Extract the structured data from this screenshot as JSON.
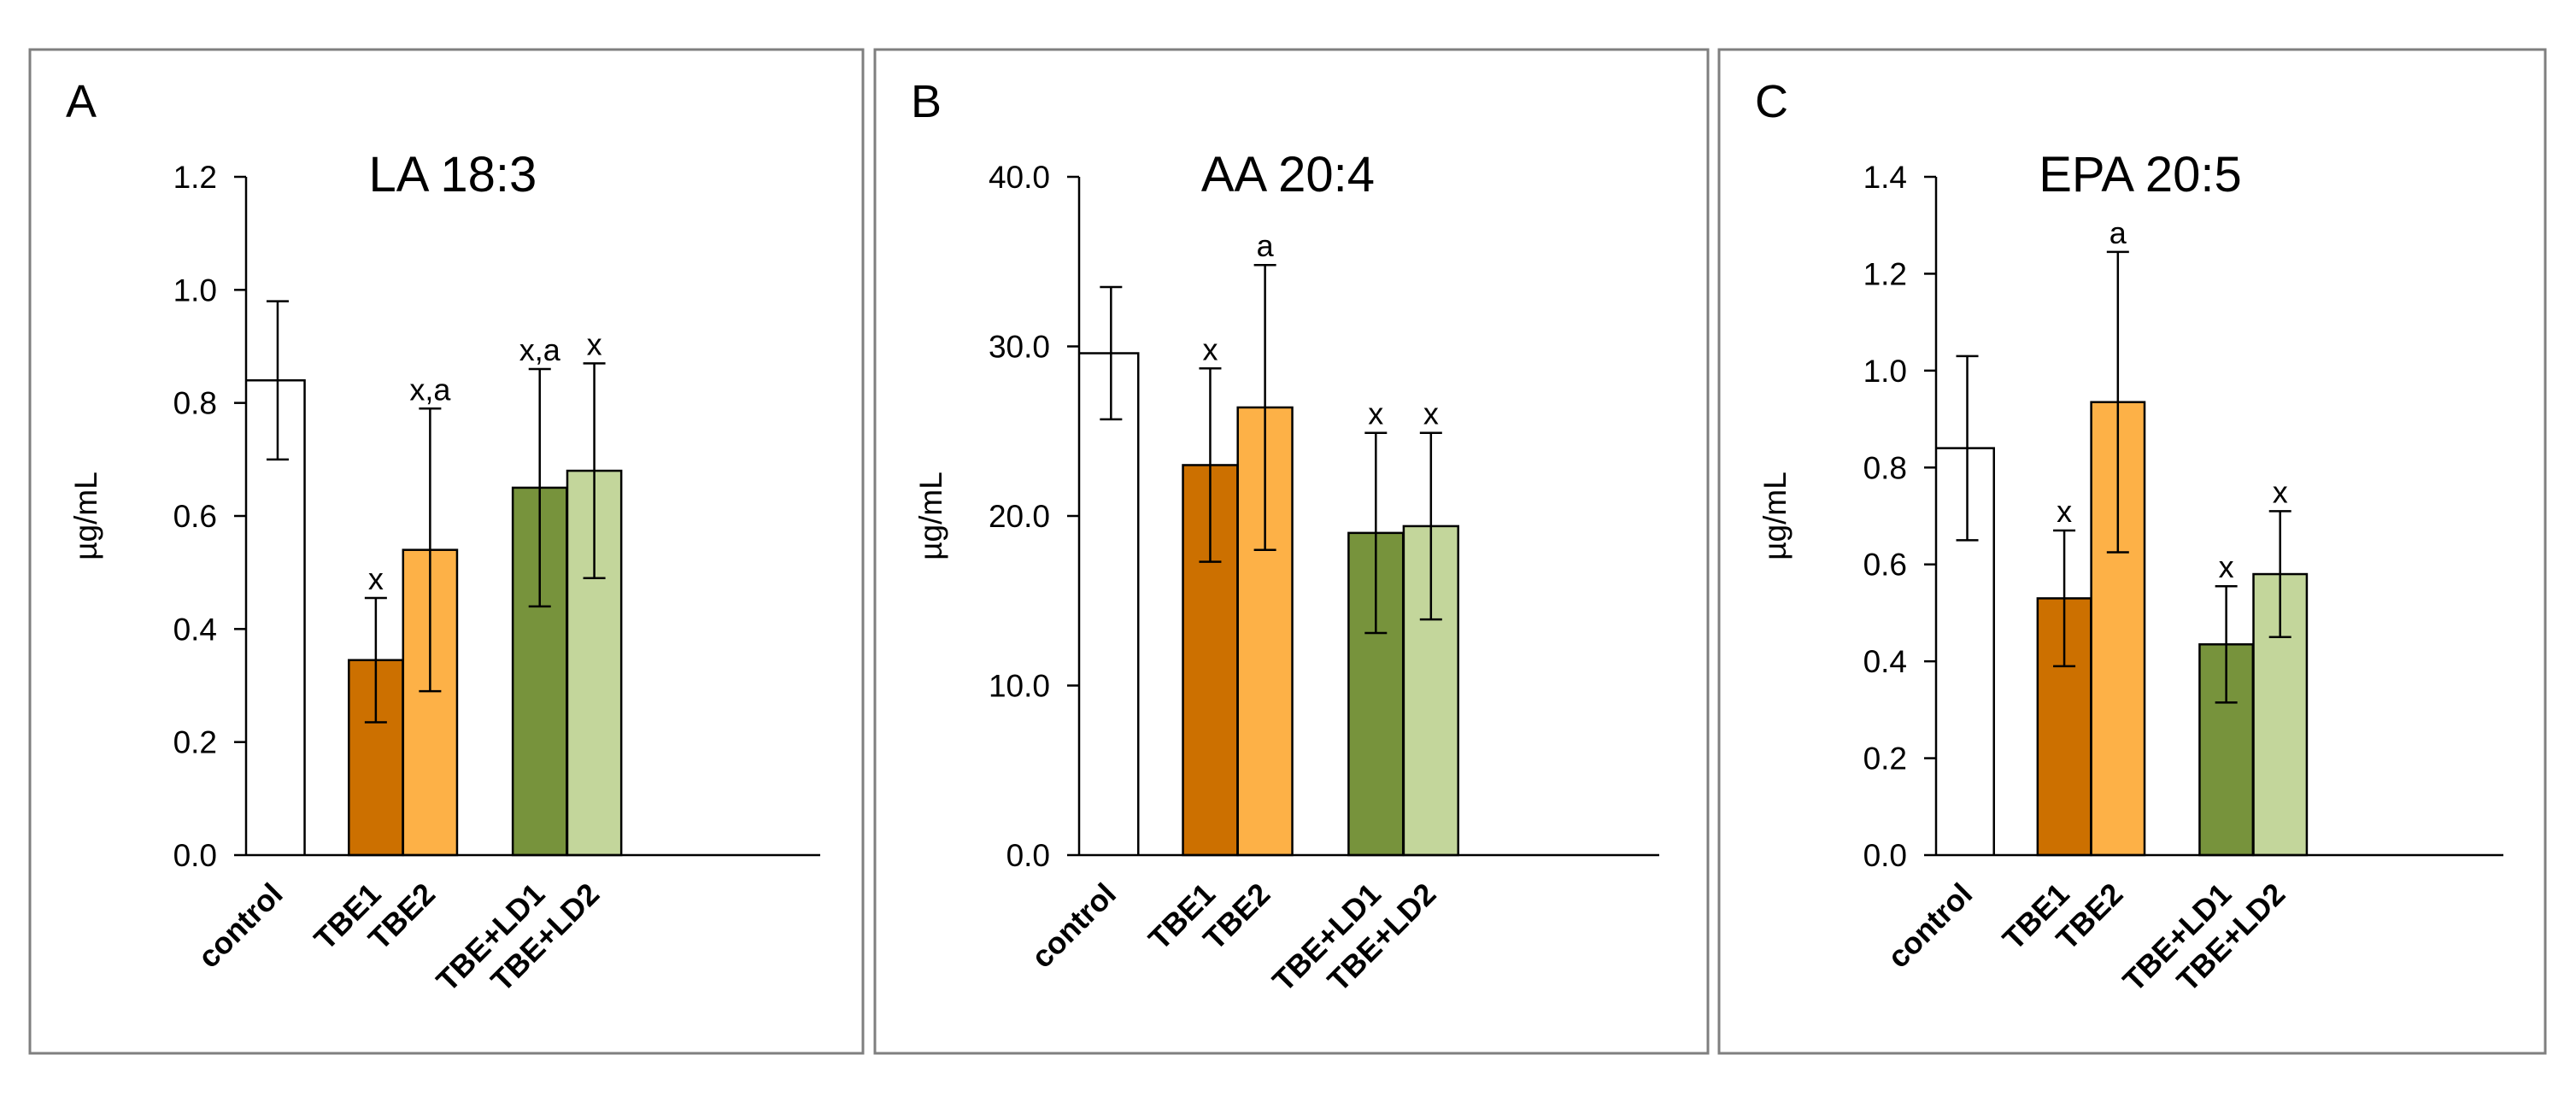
{
  "figure": {
    "panel_letters": [
      "A",
      "B",
      "C"
    ]
  },
  "colors": {
    "control": "#ffffff",
    "TBE1": "#cc7000",
    "TBE2": "#fdb147",
    "TBE+LD1": "#77933c",
    "TBE+LD2": "#c3d69b",
    "stroke": "#000000",
    "frame": "#7f7f7f"
  },
  "chart_data": [
    {
      "type": "bar",
      "panel": "A",
      "title": "LA 18:3",
      "ylabel": "µg/mL",
      "xlabel": "",
      "ylim": [
        0,
        1.2
      ],
      "yticks": [
        0.0,
        0.2,
        0.4,
        0.6,
        0.8,
        1.0,
        1.2
      ],
      "tick_labels": [
        "0.0",
        "0.2",
        "0.4",
        "0.6",
        "0.8",
        "1.0",
        "1.2"
      ],
      "categories": [
        "control",
        "TBE1",
        "TBE2",
        "TBE+LD1",
        "TBE+LD2"
      ],
      "values": [
        0.84,
        0.345,
        0.54,
        0.65,
        0.68
      ],
      "errors": [
        0.14,
        0.11,
        0.25,
        0.21,
        0.19
      ],
      "annotations": [
        "",
        "x",
        "x,a",
        "x,a",
        "x"
      ]
    },
    {
      "type": "bar",
      "panel": "B",
      "title": "AA 20:4",
      "ylabel": "µg/mL",
      "xlabel": "",
      "ylim": [
        0,
        40
      ],
      "yticks": [
        0,
        10,
        20,
        30,
        40
      ],
      "tick_labels": [
        "0.0",
        "10.0",
        "20.0",
        "30.0",
        "40.0"
      ],
      "categories": [
        "control",
        "TBE1",
        "TBE2",
        "TBE+LD1",
        "TBE+LD2"
      ],
      "values": [
        29.6,
        23.0,
        26.4,
        19.0,
        19.4
      ],
      "errors": [
        3.9,
        5.7,
        8.4,
        5.9,
        5.5
      ],
      "annotations": [
        "",
        "x",
        "a",
        "x",
        "x"
      ]
    },
    {
      "type": "bar",
      "panel": "C",
      "title": "EPA 20:5",
      "ylabel": "µg/mL",
      "xlabel": "",
      "ylim": [
        0,
        1.4
      ],
      "yticks": [
        0.0,
        0.2,
        0.4,
        0.6,
        0.8,
        1.0,
        1.2,
        1.4
      ],
      "tick_labels": [
        "0.0",
        "0.2",
        "0.4",
        "0.6",
        "0.8",
        "1.0",
        "1.2",
        "1.4"
      ],
      "categories": [
        "control",
        "TBE1",
        "TBE2",
        "TBE+LD1",
        "TBE+LD2"
      ],
      "values": [
        0.84,
        0.53,
        0.935,
        0.435,
        0.58
      ],
      "errors": [
        0.19,
        0.14,
        0.31,
        0.12,
        0.13
      ],
      "annotations": [
        "",
        "x",
        "a",
        "x",
        "x"
      ]
    }
  ]
}
